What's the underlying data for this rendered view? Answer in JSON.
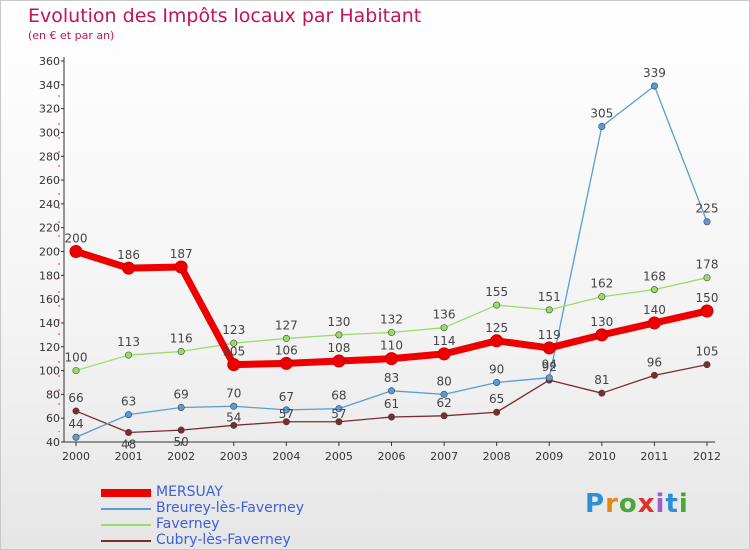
{
  "header": {
    "title": "Evolution des Impôts locaux par Habitant",
    "subtitle": "(en € et par an)"
  },
  "chart_data": {
    "type": "line",
    "title": "Evolution des Impôts locaux par Habitant",
    "subtitle": "(en € et par an)",
    "xlabel": "",
    "ylabel": "",
    "x": [
      2000,
      2001,
      2002,
      2003,
      2004,
      2005,
      2006,
      2007,
      2008,
      2009,
      2010,
      2011,
      2012
    ],
    "ylim": [
      40,
      360
    ],
    "yticks": [
      40,
      60,
      80,
      100,
      120,
      140,
      160,
      180,
      200,
      220,
      240,
      260,
      280,
      300,
      320,
      340,
      360
    ],
    "grid": false,
    "legend_position": "bottom-left",
    "series": [
      {
        "name": "MERSUAY",
        "color": "#ee0000",
        "values": [
          200,
          186,
          187,
          105,
          106,
          108,
          110,
          114,
          125,
          119,
          130,
          140,
          150
        ]
      },
      {
        "name": "Breurey-lès-Faverney",
        "color": "#5b9bd5",
        "values": [
          44,
          63,
          69,
          70,
          67,
          68,
          83,
          80,
          90,
          94,
          305,
          339,
          225
        ]
      },
      {
        "name": "Faverney",
        "color": "#99dd66",
        "values": [
          100,
          113,
          116,
          123,
          127,
          130,
          132,
          136,
          155,
          151,
          162,
          168,
          178
        ]
      },
      {
        "name": "Cubry-lès-Faverney",
        "color": "#7b2d2d",
        "values": [
          66,
          48,
          50,
          54,
          57,
          57,
          61,
          62,
          65,
          92,
          81,
          96,
          105
        ]
      }
    ]
  },
  "logo": {
    "letters": [
      "P",
      "r",
      "o",
      "x",
      "i",
      "t",
      "i"
    ],
    "colors": [
      "#2d8fd5",
      "#e08a1a",
      "#4aa838",
      "#e0302a",
      "#9a5fc8",
      "#2d8fd5",
      "#4aa838"
    ]
  }
}
